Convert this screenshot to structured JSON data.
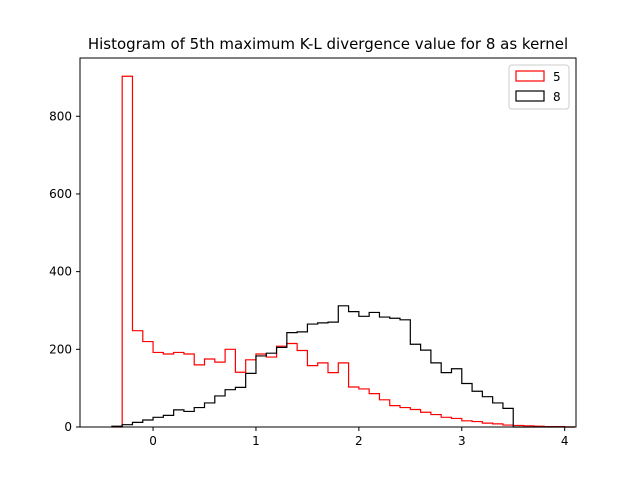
{
  "chart_data": {
    "type": "histogram",
    "title": "Histogram of 5th maximum K-L divergence value for 8 as kernel",
    "xlabel": "",
    "ylabel": "",
    "xlim": [
      -0.71,
      4.11
    ],
    "ylim": [
      0,
      950
    ],
    "xticks": [
      0,
      1,
      2,
      3,
      4
    ],
    "yticks": [
      0,
      200,
      400,
      600,
      800
    ],
    "grid": false,
    "legend_position": "top-right",
    "bin_start": -0.4,
    "bin_width": 0.1,
    "series": [
      {
        "name": "5",
        "color": "#ff0000",
        "counts": [
          0,
          903,
          248,
          220,
          192,
          188,
          192,
          188,
          160,
          175,
          167,
          200,
          141,
          173,
          188,
          180,
          208,
          215,
          197,
          158,
          165,
          140,
          165,
          103,
          98,
          86,
          70,
          55,
          50,
          45,
          38,
          32,
          25,
          22,
          16,
          14,
          10,
          8,
          5,
          4,
          3,
          2,
          1,
          1,
          0
        ]
      },
      {
        "name": "8",
        "color": "#000000",
        "counts": [
          2,
          6,
          12,
          18,
          25,
          30,
          44,
          40,
          50,
          62,
          80,
          96,
          102,
          138,
          183,
          190,
          205,
          243,
          245,
          265,
          268,
          270,
          312,
          297,
          285,
          295,
          283,
          280,
          276,
          213,
          198,
          165,
          140,
          150,
          112,
          92,
          78,
          62,
          48,
          0,
          0,
          0,
          0,
          0,
          0
        ]
      }
    ]
  }
}
